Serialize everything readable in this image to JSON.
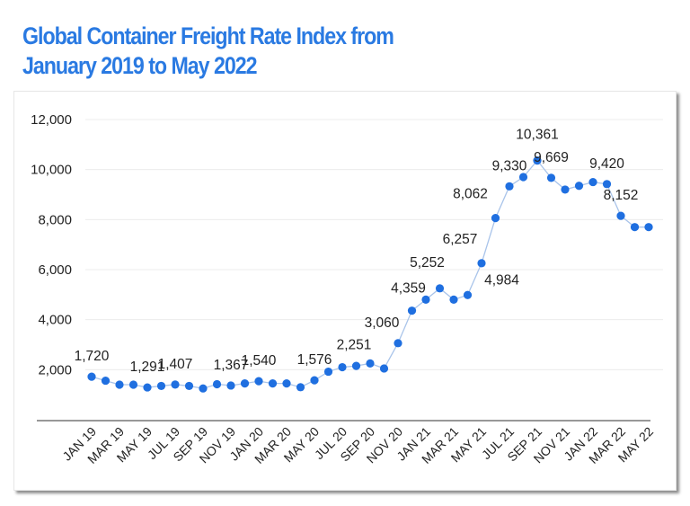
{
  "title_line1": "Global Container Freight Rate Index from",
  "title_line2": "January 2019 to May 2022",
  "colors": {
    "title": "#2a7ae2",
    "point": "#1f6fe0",
    "line": "#a9c4ea",
    "grid": "#ececec",
    "axis": "#777777"
  },
  "chart_data": {
    "type": "line",
    "title": "Global Container Freight Rate Index from January 2019 to May 2022",
    "xlabel": "",
    "ylabel": "",
    "ylim": [
      0,
      12000
    ],
    "yticks": [
      2000,
      4000,
      6000,
      8000,
      10000,
      12000
    ],
    "ytick_labels": [
      "2,000",
      "4,000",
      "6,000",
      "8,000",
      "10,000",
      "12,000"
    ],
    "grid": true,
    "x": [
      "JAN 19",
      "FEB 19",
      "MAR 19",
      "APR 19",
      "MAY 19",
      "JUN 19",
      "JUL 19",
      "AUG 19",
      "SEP 19",
      "OCT 19",
      "NOV 19",
      "DEC 19",
      "JAN 20",
      "FEB 20",
      "MAR 20",
      "APR 20",
      "MAY 20",
      "JUN 20",
      "JUL 20",
      "AUG 20",
      "SEP 20",
      "OCT 20",
      "NOV 20",
      "DEC 20",
      "JAN 21",
      "FEB 21",
      "MAR 21",
      "APR 21",
      "MAY 21",
      "JUN 21",
      "JUL 21",
      "AUG 21",
      "SEP 21",
      "OCT 21",
      "NOV 21",
      "DEC 21",
      "JAN 22",
      "FEB 22",
      "MAR 22",
      "APR 22",
      "MAY 22"
    ],
    "xtick_labels": [
      "JAN 19",
      "MAR 19",
      "MAY 19",
      "JUL 19",
      "SEP 19",
      "NOV 19",
      "JAN 20",
      "MAR 20",
      "MAY 20",
      "JUL 20",
      "SEP 20",
      "NOV 20",
      "JAN 21",
      "MAR 21",
      "MAY 21",
      "JUL 21",
      "SEP 21",
      "NOV 21",
      "JAN 22",
      "MAR 22",
      "MAY 22"
    ],
    "values": [
      1720,
      1560,
      1400,
      1400,
      1291,
      1350,
      1407,
      1350,
      1250,
      1420,
      1367,
      1450,
      1540,
      1450,
      1450,
      1300,
      1576,
      1920,
      2100,
      2150,
      2251,
      2050,
      3060,
      4359,
      4800,
      5252,
      4800,
      4984,
      6257,
      8062,
      9330,
      9700,
      10361,
      9669,
      9200,
      9350,
      9500,
      9420,
      8152,
      7700,
      7700
    ],
    "data_labels": [
      {
        "index": 0,
        "text": "1,720"
      },
      {
        "index": 4,
        "text": "1,291"
      },
      {
        "index": 6,
        "text": "1,407"
      },
      {
        "index": 10,
        "text": "1,367"
      },
      {
        "index": 12,
        "text": "1,540"
      },
      {
        "index": 16,
        "text": "1,576"
      },
      {
        "index": 20,
        "text": "2,251"
      },
      {
        "index": 22,
        "text": "3,060"
      },
      {
        "index": 23,
        "text": "4,359"
      },
      {
        "index": 25,
        "text": "5,252"
      },
      {
        "index": 27,
        "text": "4,984"
      },
      {
        "index": 28,
        "text": "6,257"
      },
      {
        "index": 29,
        "text": "8,062"
      },
      {
        "index": 30,
        "text": "9,330"
      },
      {
        "index": 32,
        "text": "10,361"
      },
      {
        "index": 33,
        "text": "9,669"
      },
      {
        "index": 37,
        "text": "9,420"
      },
      {
        "index": 38,
        "text": "8,152"
      }
    ]
  }
}
